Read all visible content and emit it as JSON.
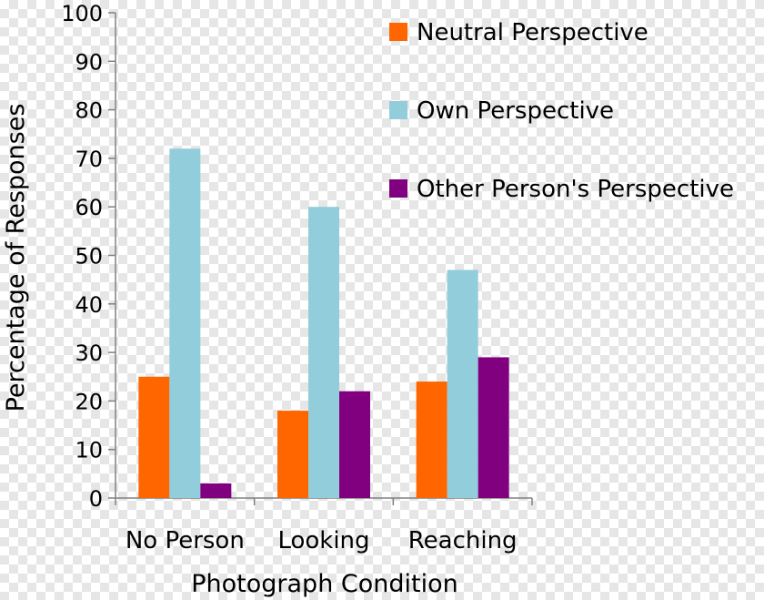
{
  "chart_data": {
    "type": "bar",
    "title": "",
    "xlabel": "Photograph Condition",
    "ylabel": "Percentage of Responses",
    "ylim": [
      0,
      100
    ],
    "yticks": [
      0,
      10,
      20,
      30,
      40,
      50,
      60,
      70,
      80,
      90,
      100
    ],
    "categories": [
      "No Person",
      "Looking",
      "Reaching"
    ],
    "series": [
      {
        "name": "Neutral Perspective",
        "color": "#ff6600",
        "values": [
          25,
          18,
          24
        ]
      },
      {
        "name": "Own Perspective",
        "color": "#92cddc",
        "values": [
          72,
          60,
          47
        ]
      },
      {
        "name": "Other Person's Perspective",
        "color": "#800080",
        "values": [
          3,
          22,
          29
        ]
      }
    ],
    "legend_position": "top-right",
    "grid": false
  }
}
